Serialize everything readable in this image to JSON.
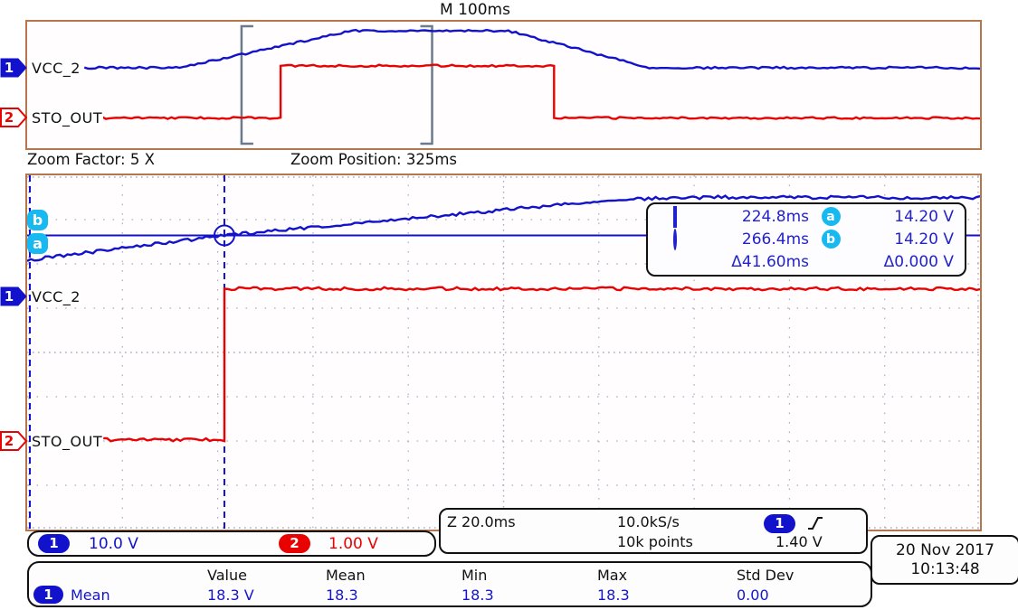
{
  "colors": {
    "ch1_blue": "#1212cc",
    "ch2_red": "#e80202",
    "cursor_badge_cyan": "#18b8f0",
    "panel_border_tan": "#b5764b",
    "readout_text_blue": "#2222cc",
    "grid_dot": "#a8aec6",
    "zoom_bracket_slate": "#6b7b8d"
  },
  "channels": {
    "ch1": {
      "number": "1",
      "label": "VCC_2",
      "scale": "10.0 V"
    },
    "ch2": {
      "number": "2",
      "label": "STO_OUT",
      "scale": "1.00 V"
    }
  },
  "top_panel": {
    "timebase_label": "M 100ms"
  },
  "zoom_bar": {
    "factor_label": "Zoom Factor: 5 X",
    "position_label": "Zoom Position: 325ms"
  },
  "cursor_markers": {
    "a": "a",
    "b": "b"
  },
  "cursor_readout": {
    "row1": {
      "time": "224.8ms",
      "badge": "a",
      "volt": "14.20 V"
    },
    "row2": {
      "time": "266.4ms",
      "badge": "b",
      "volt": "14.20 V"
    },
    "row3": {
      "time": "Δ41.60ms",
      "volt": "Δ0.000 V"
    }
  },
  "acquisition": {
    "zoom_timebase": "Z 20.0ms",
    "sample_rate": "10.0kS/s",
    "record_length": "10k points",
    "trigger_source": "1",
    "trigger_level": "1.40 V"
  },
  "datetime": {
    "date": "20 Nov 2017",
    "time": "10:13:48"
  },
  "measurements": {
    "headers": {
      "value": "Value",
      "mean": "Mean",
      "min": "Min",
      "max": "Max",
      "std_dev": "Std Dev"
    },
    "row1": {
      "source": "1",
      "name": "Mean",
      "value": "18.3 V",
      "mean": "18.3",
      "min": "18.3",
      "max": "18.3",
      "std_dev": "0.00"
    }
  },
  "chart_data": [
    {
      "type": "line",
      "panel": "overview",
      "title": "Full record overview",
      "time_per_div_ms": 100,
      "divisions_x": 10,
      "divisions_y": 8,
      "time_range_ms": [
        0,
        1000
      ],
      "trigger_marker_ms": 500,
      "zoom_bracket_ms": [
        225,
        425
      ],
      "series": [
        {
          "name": "VCC_2",
          "channel": 1,
          "volts_per_div": 10.0,
          "zero_div": 2.914,
          "points_t_v": [
            [
              60,
              0
            ],
            [
              160,
              0
            ],
            [
              341,
              23.4
            ],
            [
              505,
              23.4
            ],
            [
              653,
              0
            ],
            [
              1000,
              0
            ]
          ]
        },
        {
          "name": "STO_OUT",
          "channel": 2,
          "volts_per_div": 1.0,
          "zero_div": 6.086,
          "points_t_v": [
            [
              75,
              0
            ],
            [
              266,
              0
            ],
            [
              266,
              3.3
            ],
            [
              553,
              3.3
            ],
            [
              553,
              0
            ],
            [
              1000,
              0
            ]
          ]
        }
      ]
    },
    {
      "type": "line",
      "panel": "zoom",
      "title": "Zoomed window (5X, centered 325ms)",
      "time_per_div_ms": 20,
      "divisions_x": 10,
      "divisions_y": 8,
      "time_range_ms": [
        225,
        425
      ],
      "grid": true,
      "series": [
        {
          "name": "VCC_2",
          "channel": 1,
          "volts_per_div": 10.0,
          "zero_div": 2.776,
          "points_t_v": [
            [
              225,
              8.6
            ],
            [
              266.4,
              14.2
            ],
            [
              350,
              22.4
            ],
            [
              370,
              22.8
            ],
            [
              425,
              22.7
            ]
          ]
        },
        {
          "name": "STO_OUT",
          "channel": 2,
          "volts_per_div": 1.0,
          "zero_div": 6.0,
          "points_t_v": [
            [
              241,
              0.03
            ],
            [
              266.4,
              0.03
            ],
            [
              266.4,
              3.44
            ],
            [
              425,
              3.44
            ]
          ]
        }
      ],
      "cursors": {
        "t1_ms": 224.8,
        "t2_ms": 266.4,
        "v_a": 14.2,
        "v_b": 14.2,
        "delta_t_ms": 41.6,
        "delta_v": 0.0
      }
    }
  ]
}
